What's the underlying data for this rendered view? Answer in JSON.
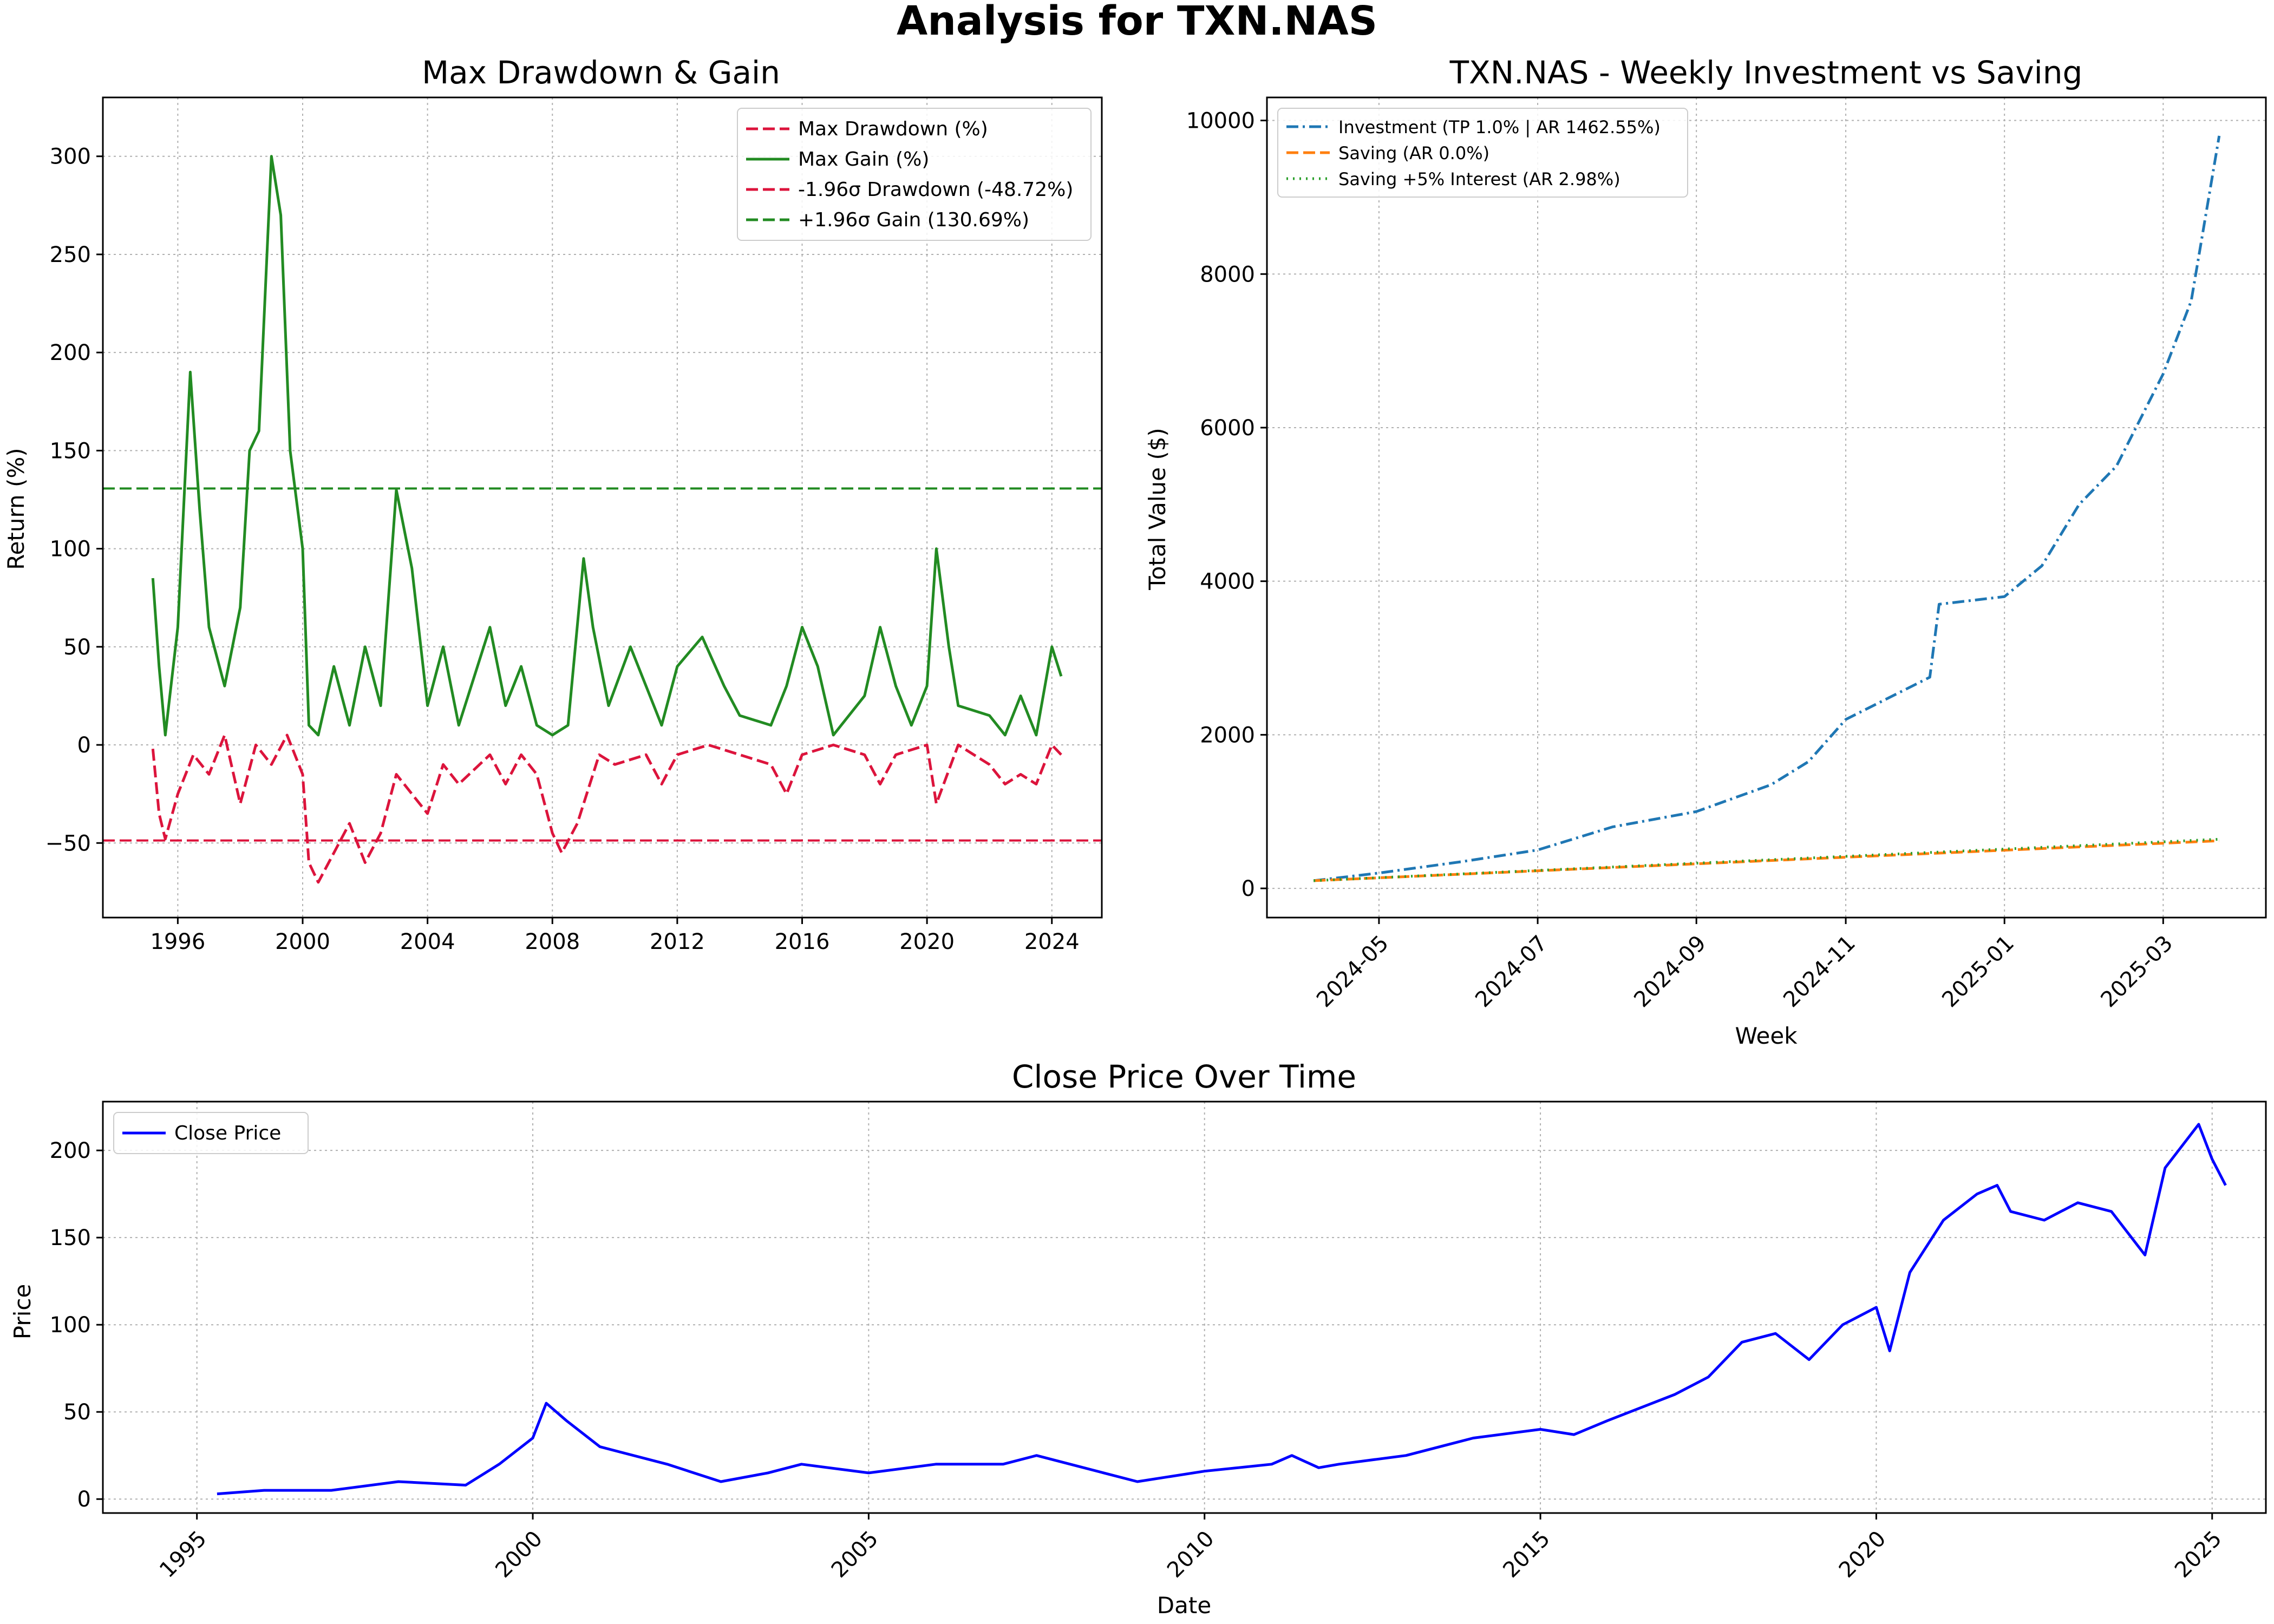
{
  "suptitle": "Analysis for TXN.NAS",
  "chart_data": [
    {
      "type": "line",
      "title": "Max Drawdown & Gain",
      "xlabel": "",
      "ylabel": "Return (%)",
      "xlim": [
        1993.6,
        2025.6
      ],
      "ylim": [
        -88,
        330
      ],
      "xticks": [
        1996,
        2000,
        2004,
        2008,
        2012,
        2016,
        2020,
        2024
      ],
      "xticklabels": [
        "1996",
        "2000",
        "2004",
        "2008",
        "2012",
        "2016",
        "2020",
        "2024"
      ],
      "yticks": [
        -50,
        0,
        50,
        100,
        150,
        200,
        250,
        300
      ],
      "yticklabels": [
        "−50",
        "0",
        "50",
        "100",
        "150",
        "200",
        "250",
        "300"
      ],
      "grid": true,
      "legend_position": "top-right",
      "series": [
        {
          "name": "Max Drawdown (%)",
          "color": "#dc143c",
          "style": "dashed",
          "x": [
            1995.2,
            1995.4,
            1995.6,
            1996.0,
            1996.5,
            1997.0,
            1997.5,
            1998.0,
            1998.5,
            1999.0,
            1999.5,
            2000.0,
            2000.2,
            2000.5,
            2001.0,
            2001.5,
            2002.0,
            2002.5,
            2003.0,
            2003.5,
            2004.0,
            2004.5,
            2005.0,
            2006.0,
            2006.5,
            2007.0,
            2007.5,
            2008.0,
            2008.3,
            2008.8,
            2009.5,
            2010.0,
            2011.0,
            2011.5,
            2012.0,
            2013.0,
            2014.0,
            2015.0,
            2015.5,
            2016.0,
            2017.0,
            2018.0,
            2018.5,
            2019.0,
            2020.0,
            2020.3,
            2021.0,
            2022.0,
            2022.5,
            2023.0,
            2023.5,
            2024.0,
            2024.3
          ],
          "y": [
            -2,
            -35,
            -48,
            -25,
            -5,
            -15,
            5,
            -30,
            0,
            -10,
            5,
            -15,
            -60,
            -70,
            -55,
            -40,
            -60,
            -45,
            -15,
            -25,
            -35,
            -10,
            -20,
            -5,
            -20,
            -5,
            -15,
            -45,
            -55,
            -40,
            -5,
            -10,
            -5,
            -20,
            -5,
            0,
            -5,
            -10,
            -25,
            -5,
            0,
            -5,
            -20,
            -5,
            0,
            -30,
            0,
            -10,
            -20,
            -15,
            -20,
            0,
            -5
          ]
        },
        {
          "name": "Max Gain (%)",
          "color": "#228b22",
          "style": "solid",
          "x": [
            1995.2,
            1995.4,
            1995.6,
            1996.0,
            1996.4,
            1996.7,
            1997.0,
            1997.5,
            1998.0,
            1998.3,
            1998.6,
            1999.0,
            1999.3,
            1999.6,
            2000.0,
            2000.2,
            2000.5,
            2001.0,
            2001.5,
            2002.0,
            2002.5,
            2003.0,
            2003.5,
            2004.0,
            2004.5,
            2005.0,
            2006.0,
            2006.5,
            2007.0,
            2007.5,
            2008.0,
            2008.5,
            2009.0,
            2009.3,
            2009.8,
            2010.5,
            2011.0,
            2011.5,
            2012.0,
            2012.8,
            2013.5,
            2014.0,
            2015.0,
            2015.5,
            2016.0,
            2016.5,
            2017.0,
            2018.0,
            2018.5,
            2019.0,
            2019.5,
            2020.0,
            2020.3,
            2020.7,
            2021.0,
            2022.0,
            2022.5,
            2023.0,
            2023.5,
            2024.0,
            2024.3
          ],
          "y": [
            85,
            40,
            5,
            60,
            190,
            120,
            60,
            30,
            70,
            150,
            160,
            300,
            270,
            150,
            100,
            10,
            5,
            40,
            10,
            50,
            20,
            130,
            90,
            20,
            50,
            10,
            60,
            20,
            40,
            10,
            5,
            10,
            95,
            60,
            20,
            50,
            30,
            10,
            40,
            55,
            30,
            15,
            10,
            30,
            60,
            40,
            5,
            25,
            60,
            30,
            10,
            30,
            100,
            50,
            20,
            15,
            5,
            25,
            5,
            50,
            35
          ]
        }
      ],
      "hlines": [
        {
          "name": "-1.96σ Drawdown (-48.72%)",
          "y": -48.72,
          "color": "#dc143c"
        },
        {
          "name": "+1.96σ Gain (130.69%)",
          "y": 130.69,
          "color": "#228b22"
        }
      ]
    },
    {
      "type": "line",
      "title": "TXN.NAS - Weekly Investment vs Saving",
      "xlabel": "Week",
      "ylabel": "Total Value ($)",
      "xlim": [
        2024.21,
        2025.28
      ],
      "ylim": [
        -380,
        10300
      ],
      "xticks": [
        2024.33,
        2024.5,
        2024.67,
        2024.83,
        2025.0,
        2025.17
      ],
      "xticklabels": [
        "2024-05",
        "2024-07",
        "2024-09",
        "2024-11",
        "2025-01",
        "2025-03"
      ],
      "yticks": [
        0,
        2000,
        4000,
        6000,
        8000,
        10000
      ],
      "yticklabels": [
        "0",
        "2000",
        "4000",
        "6000",
        "8000",
        "10000"
      ],
      "grid": true,
      "legend_position": "top-left",
      "series": [
        {
          "name": "Investment (TP 1.0% | AR 1462.55%)",
          "color": "#1f77b4",
          "style": "dashdot",
          "x": [
            2024.26,
            2024.33,
            2024.42,
            2024.5,
            2024.58,
            2024.67,
            2024.75,
            2024.79,
            2024.83,
            2024.92,
            2024.93,
            2025.0,
            2025.04,
            2025.08,
            2025.12,
            2025.17,
            2025.2,
            2025.23
          ],
          "y": [
            100,
            200,
            350,
            500,
            800,
            1000,
            1350,
            1650,
            2200,
            2750,
            3700,
            3800,
            4200,
            5000,
            5500,
            6700,
            7650,
            9800
          ]
        },
        {
          "name": "Saving (AR 0.0%)",
          "color": "#ff7f0e",
          "style": "dashed",
          "x": [
            2024.26,
            2025.23
          ],
          "y": [
            100,
            620
          ]
        },
        {
          "name": "Saving +5% Interest (AR 2.98%)",
          "color": "#2ca02c",
          "style": "dotted",
          "x": [
            2024.26,
            2025.23
          ],
          "y": [
            100,
            640
          ]
        }
      ]
    },
    {
      "type": "line",
      "title": "Close Price Over Time",
      "xlabel": "Date",
      "ylabel": "Price",
      "xlim": [
        1993.6,
        2025.8
      ],
      "ylim": [
        -8,
        228
      ],
      "xticks": [
        1995,
        2000,
        2005,
        2010,
        2015,
        2020,
        2025
      ],
      "xticklabels": [
        "1995",
        "2000",
        "2005",
        "2010",
        "2015",
        "2020",
        "2025"
      ],
      "yticks": [
        0,
        50,
        100,
        150,
        200
      ],
      "yticklabels": [
        "0",
        "50",
        "100",
        "150",
        "200"
      ],
      "grid": true,
      "legend_position": "top-left",
      "series": [
        {
          "name": "Close Price",
          "color": "#0000ff",
          "style": "solid",
          "x": [
            1995.3,
            1996.0,
            1997.0,
            1998.0,
            1999.0,
            1999.5,
            2000.0,
            2000.2,
            2000.5,
            2001.0,
            2002.0,
            2002.8,
            2003.5,
            2004.0,
            2005.0,
            2006.0,
            2007.0,
            2007.5,
            2008.0,
            2008.5,
            2009.0,
            2010.0,
            2011.0,
            2011.3,
            2011.7,
            2012.0,
            2013.0,
            2014.0,
            2015.0,
            2015.5,
            2016.0,
            2017.0,
            2017.5,
            2018.0,
            2018.5,
            2019.0,
            2019.5,
            2020.0,
            2020.2,
            2020.5,
            2021.0,
            2021.5,
            2021.8,
            2022.0,
            2022.5,
            2023.0,
            2023.5,
            2024.0,
            2024.3,
            2024.8,
            2025.0,
            2025.2
          ],
          "y": [
            3,
            5,
            5,
            10,
            8,
            20,
            35,
            55,
            45,
            30,
            20,
            10,
            15,
            20,
            15,
            20,
            20,
            25,
            20,
            15,
            10,
            16,
            20,
            25,
            18,
            20,
            25,
            35,
            40,
            37,
            45,
            60,
            70,
            90,
            95,
            80,
            100,
            110,
            85,
            130,
            160,
            175,
            180,
            165,
            160,
            170,
            165,
            140,
            190,
            215,
            195,
            180
          ]
        }
      ]
    }
  ]
}
